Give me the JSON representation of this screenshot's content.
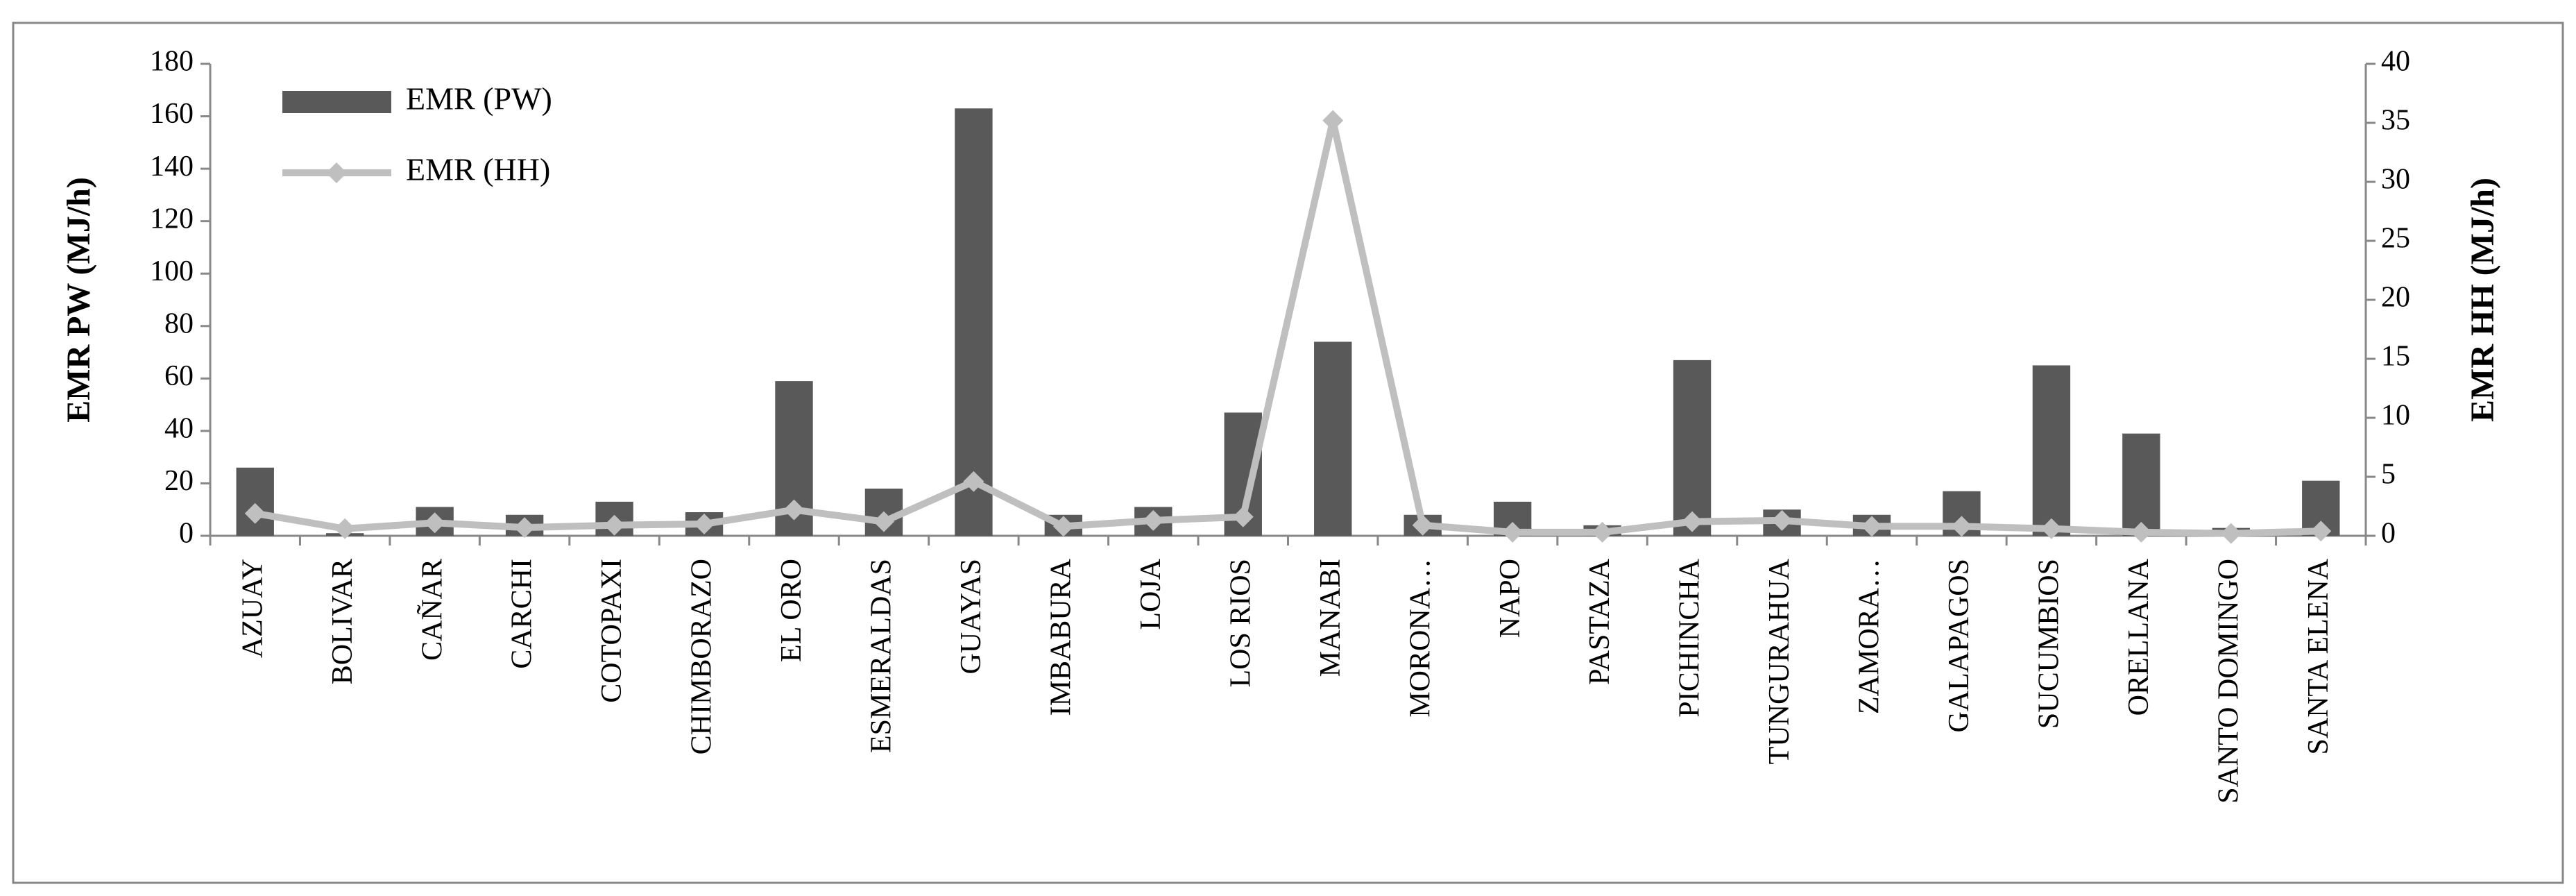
{
  "chart_data": {
    "type": "bar-line",
    "categories": [
      "AZUAY",
      "BOLIVAR",
      "CAÑAR",
      "CARCHI",
      "COTOPAXI",
      "CHIMBORAZO",
      "EL ORO",
      "ESMERALDAS",
      "GUAYAS",
      "IMBABURA",
      "LOJA",
      "LOS RIOS",
      "MANABI",
      "MORONA…",
      "NAPO",
      "PASTAZA",
      "PICHINCHA",
      "TUNGURAHUA",
      "ZAMORA…",
      "GALAPAGOS",
      "SUCUMBIOS",
      "ORELLANA",
      "SANTO DOMINGO",
      "SANTA ELENA"
    ],
    "series": [
      {
        "name": "EMR (PW)",
        "type": "bar",
        "color": "#595959",
        "values": [
          26,
          1,
          11,
          8,
          13,
          9,
          59,
          18,
          163,
          8,
          11,
          47,
          74,
          8,
          13,
          4,
          67,
          10,
          8,
          17,
          65,
          39,
          3,
          21
        ]
      },
      {
        "name": "EMR (HH)",
        "type": "line",
        "axis": "y2",
        "color": "#bfbfbf",
        "values": [
          1.9,
          0.6,
          1.1,
          0.7,
          0.9,
          1.0,
          2.2,
          1.2,
          4.6,
          0.8,
          1.3,
          1.6,
          35.2,
          0.9,
          0.3,
          0.3,
          1.2,
          1.3,
          0.8,
          0.8,
          0.6,
          0.3,
          0.2,
          0.4
        ]
      }
    ],
    "ylabel": "EMR PW (MJ/h)",
    "y2label": "EMR HH (MJ/h)",
    "ylim": [
      0,
      180
    ],
    "yticks": [
      0,
      20,
      40,
      60,
      80,
      100,
      120,
      140,
      160,
      180
    ],
    "y2lim": [
      0,
      40
    ],
    "y2ticks": [
      0,
      5,
      10,
      15,
      20,
      25,
      30,
      35,
      40
    ],
    "legend": "upper left"
  }
}
